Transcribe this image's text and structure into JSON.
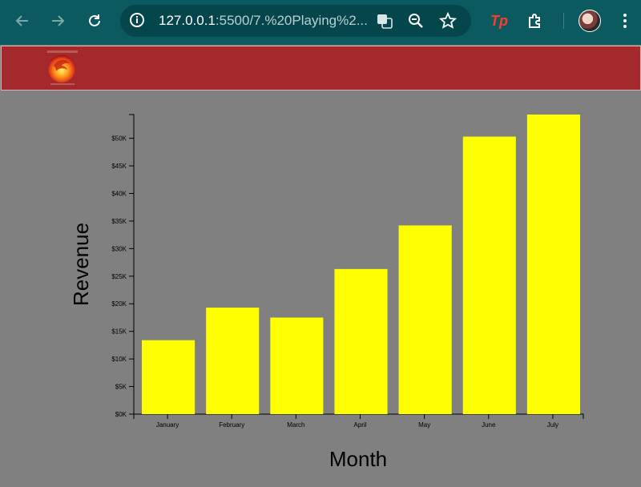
{
  "browser": {
    "url_host": "127.0.0.1",
    "url_rest": ":5500/7.%20Playing%2...",
    "icons": [
      "back-icon",
      "forward-icon",
      "reload-icon",
      "site-info-icon",
      "translate-icon",
      "zoom-icon",
      "bookmark-star-icon",
      "extension-tp-icon",
      "extensions-puzzle-icon",
      "profile-avatar",
      "menu-dots-icon"
    ],
    "tp_label": "Tp"
  },
  "header": {
    "background": "#a4292c",
    "logo_icon": "fire-lion-logo"
  },
  "chart_data": {
    "type": "bar",
    "categories": [
      "January",
      "February",
      "March",
      "April",
      "May",
      "June",
      "July"
    ],
    "values": [
      13400,
      19300,
      17500,
      26300,
      34200,
      50300,
      54300
    ],
    "xlabel": "Month",
    "ylabel": "Revenue",
    "ylim": [
      0,
      54300
    ],
    "yticks": [
      0,
      5000,
      10000,
      15000,
      20000,
      25000,
      30000,
      35000,
      40000,
      45000,
      50000
    ],
    "ytick_labels": [
      "$0K",
      "$5K",
      "$10K",
      "$15K",
      "$20K",
      "$25K",
      "$30K",
      "$35K",
      "$40K",
      "$45K",
      "$50K"
    ],
    "bar_color": "#ffff00",
    "background": "#808080",
    "grid": false
  }
}
